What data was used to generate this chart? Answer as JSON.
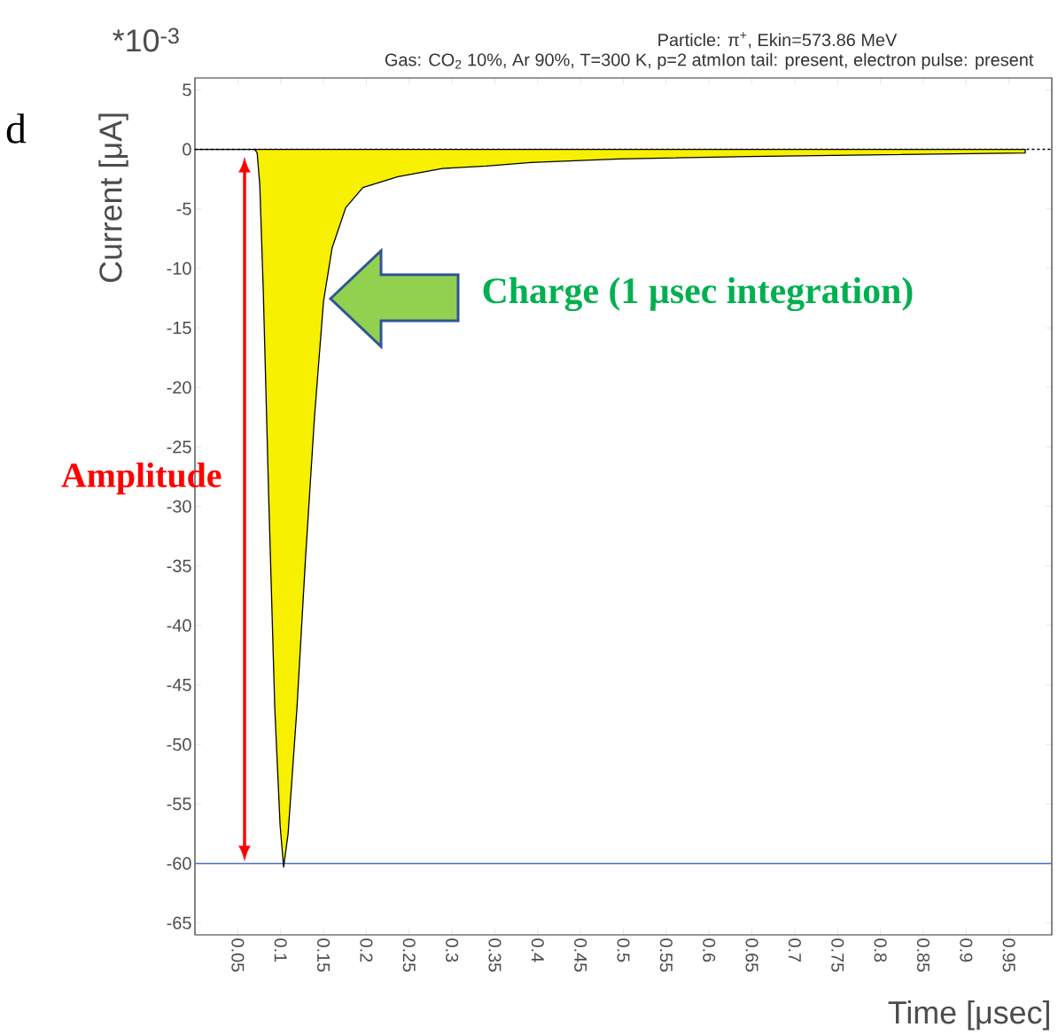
{
  "chart_data": {
    "type": "area",
    "title": "Particle: π$^{+}$, Ekin=573.86 MeV",
    "subtitle": "Gas: CO$_{2}$ 10%, Ar 90%, T=300 K, p=2 atmIon tail: present, electron pulse: present",
    "xlabel": "Time [μsec]",
    "ylabel": "Current [μA]",
    "annotations": [
      "d",
      "*10$^{-3}$",
      "Amplitude",
      "Charge (1 µsec integration)"
    ],
    "series": [
      {
        "color": "#f7f000",
        "x": [
          0,
          0.07,
          0.0726,
          0.0757,
          0.0798,
          0.086,
          0.0932,
          0.0994,
          0.1035,
          0.1087,
          0.119,
          0.129,
          0.1395,
          0.15,
          0.16,
          0.176,
          0.196,
          0.237,
          0.289,
          0.34,
          0.392,
          0.495,
          0.648,
          0.804,
          0.969
        ],
        "values": [
          0,
          0,
          -0.3,
          -3,
          -12,
          -29,
          -47,
          -56.8,
          -60.3,
          -57.5,
          -47,
          -34.4,
          -22.5,
          -12.8,
          -8.3,
          -4.9,
          -3.2,
          -2.3,
          -1.6,
          -1.4,
          -1.1,
          -0.8,
          -0.6,
          -0.45,
          -0.3
        ]
      }
    ],
    "xlim": [
      0,
      1
    ],
    "ylim": [
      -66,
      6
    ],
    "xticks": [
      0.05,
      0.1,
      0.15,
      0.2,
      0.25,
      0.3,
      0.35,
      0.4,
      0.45,
      0.5,
      0.55,
      0.6,
      0.65,
      0.7,
      0.75,
      0.8,
      0.85,
      0.9,
      0.95
    ],
    "yticks": [
      5,
      0,
      -5,
      -10,
      -15,
      -20,
      -25,
      -30,
      -35,
      -40,
      -45,
      -50,
      -55,
      -60,
      -65
    ],
    "ref_lines": [
      {
        "axis": "y",
        "value": 0,
        "line_style": "dashed",
        "color": "#000000"
      },
      {
        "axis": "y",
        "value": -60,
        "color": "#4472c4"
      }
    ],
    "marker": "none",
    "line_style": "solid",
    "grid": false
  }
}
